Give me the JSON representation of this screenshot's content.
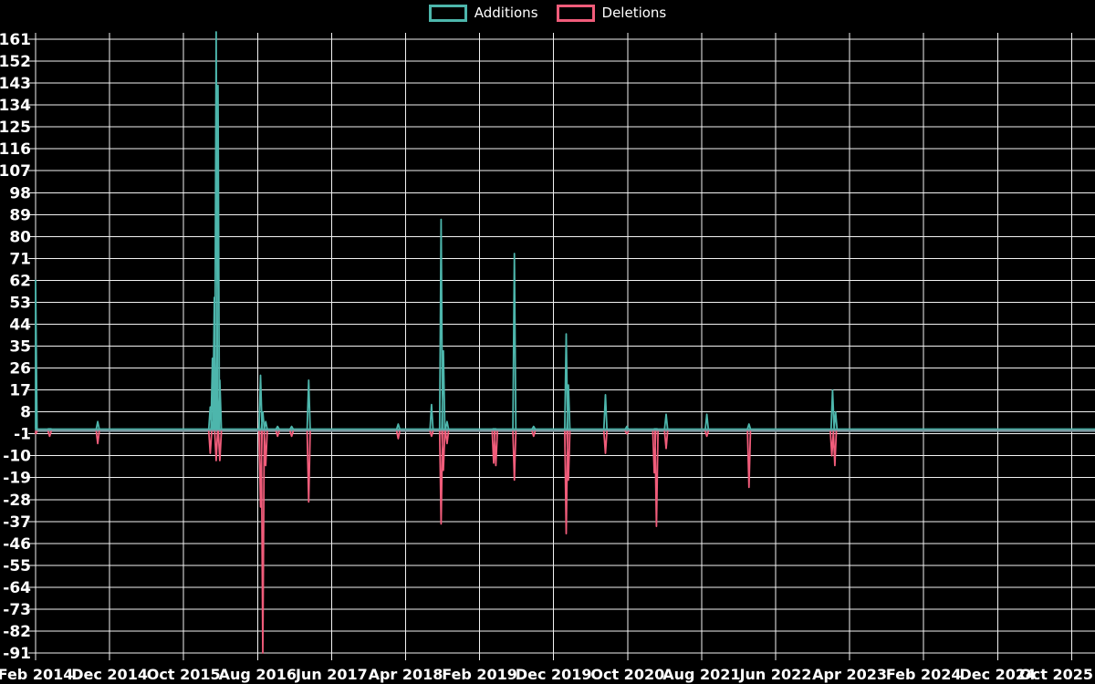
{
  "chart_data": {
    "type": "line",
    "legend_position": "top-center",
    "grid": true,
    "background": "#000000",
    "x_axis": {
      "tick_labels": [
        "Feb 2014",
        "Dec 2014",
        "Oct 2015",
        "Aug 2016",
        "Jun 2017",
        "Apr 2018",
        "Feb 2019",
        "Dec 2019",
        "Oct 2020",
        "Aug 2021",
        "Jun 2022",
        "Apr 2023",
        "Feb 2024",
        "Dec 2024",
        "Oct 2025"
      ],
      "months_per_tick": 10
    },
    "y_axis": {
      "tick_labels": [
        161,
        152,
        143,
        134,
        125,
        116,
        107,
        98,
        89,
        80,
        71,
        62,
        53,
        44,
        35,
        26,
        17,
        8,
        -1,
        -10,
        -19,
        -28,
        -37,
        -46,
        -55,
        -64,
        -73,
        -82,
        -91
      ],
      "max": 161,
      "min": -91,
      "step": 9
    },
    "baseline_value": 0,
    "series": [
      {
        "name": "Additions",
        "color": "#4db6ac",
        "points": [
          [
            0,
            62
          ],
          [
            1.9,
            1
          ],
          [
            8.4,
            4
          ],
          [
            23.6,
            10
          ],
          [
            23.9,
            30
          ],
          [
            24.15,
            55
          ],
          [
            24.4,
            164
          ],
          [
            24.65,
            142
          ],
          [
            24.9,
            21
          ],
          [
            30.4,
            23
          ],
          [
            30.7,
            8
          ],
          [
            31.1,
            4
          ],
          [
            32.7,
            2
          ],
          [
            34.6,
            2
          ],
          [
            36.9,
            21
          ],
          [
            49,
            3
          ],
          [
            53.5,
            11
          ],
          [
            54.8,
            87
          ],
          [
            55.1,
            33
          ],
          [
            55.6,
            4
          ],
          [
            62,
            1
          ],
          [
            64.7,
            73
          ],
          [
            67.3,
            2
          ],
          [
            71.7,
            40
          ],
          [
            72,
            19
          ],
          [
            77,
            15
          ],
          [
            79.9,
            2
          ],
          [
            83.8,
            1
          ],
          [
            85.2,
            7
          ],
          [
            90.7,
            7
          ],
          [
            96.4,
            3
          ],
          [
            107.7,
            17
          ],
          [
            108.1,
            8
          ]
        ]
      },
      {
        "name": "Deletions",
        "color": "#f05c7a",
        "points": [
          [
            0,
            -1
          ],
          [
            1.9,
            -2
          ],
          [
            8.4,
            -5
          ],
          [
            23.6,
            -9
          ],
          [
            24.4,
            -12
          ],
          [
            24.9,
            -12
          ],
          [
            30.4,
            -31
          ],
          [
            30.7,
            -91
          ],
          [
            31.1,
            -14
          ],
          [
            32.7,
            -2
          ],
          [
            34.6,
            -2
          ],
          [
            36.9,
            -29
          ],
          [
            49,
            -3
          ],
          [
            53.5,
            -2
          ],
          [
            54.8,
            -38
          ],
          [
            55.1,
            -16
          ],
          [
            55.6,
            -5
          ],
          [
            61.9,
            -13
          ],
          [
            62.2,
            -14
          ],
          [
            64.7,
            -20
          ],
          [
            67.3,
            -2
          ],
          [
            71.7,
            -42
          ],
          [
            72,
            -20
          ],
          [
            77,
            -9
          ],
          [
            79.9,
            -1
          ],
          [
            83.6,
            -17
          ],
          [
            83.9,
            -39
          ],
          [
            85.2,
            -7
          ],
          [
            90.7,
            -2
          ],
          [
            96.4,
            -23
          ],
          [
            107.6,
            -10
          ],
          [
            108,
            -14
          ]
        ]
      }
    ]
  },
  "colors": {
    "background": "#000000",
    "grid": "#f2f2f2",
    "text": "#ffffff",
    "baseline_band": "#7d98a0"
  }
}
